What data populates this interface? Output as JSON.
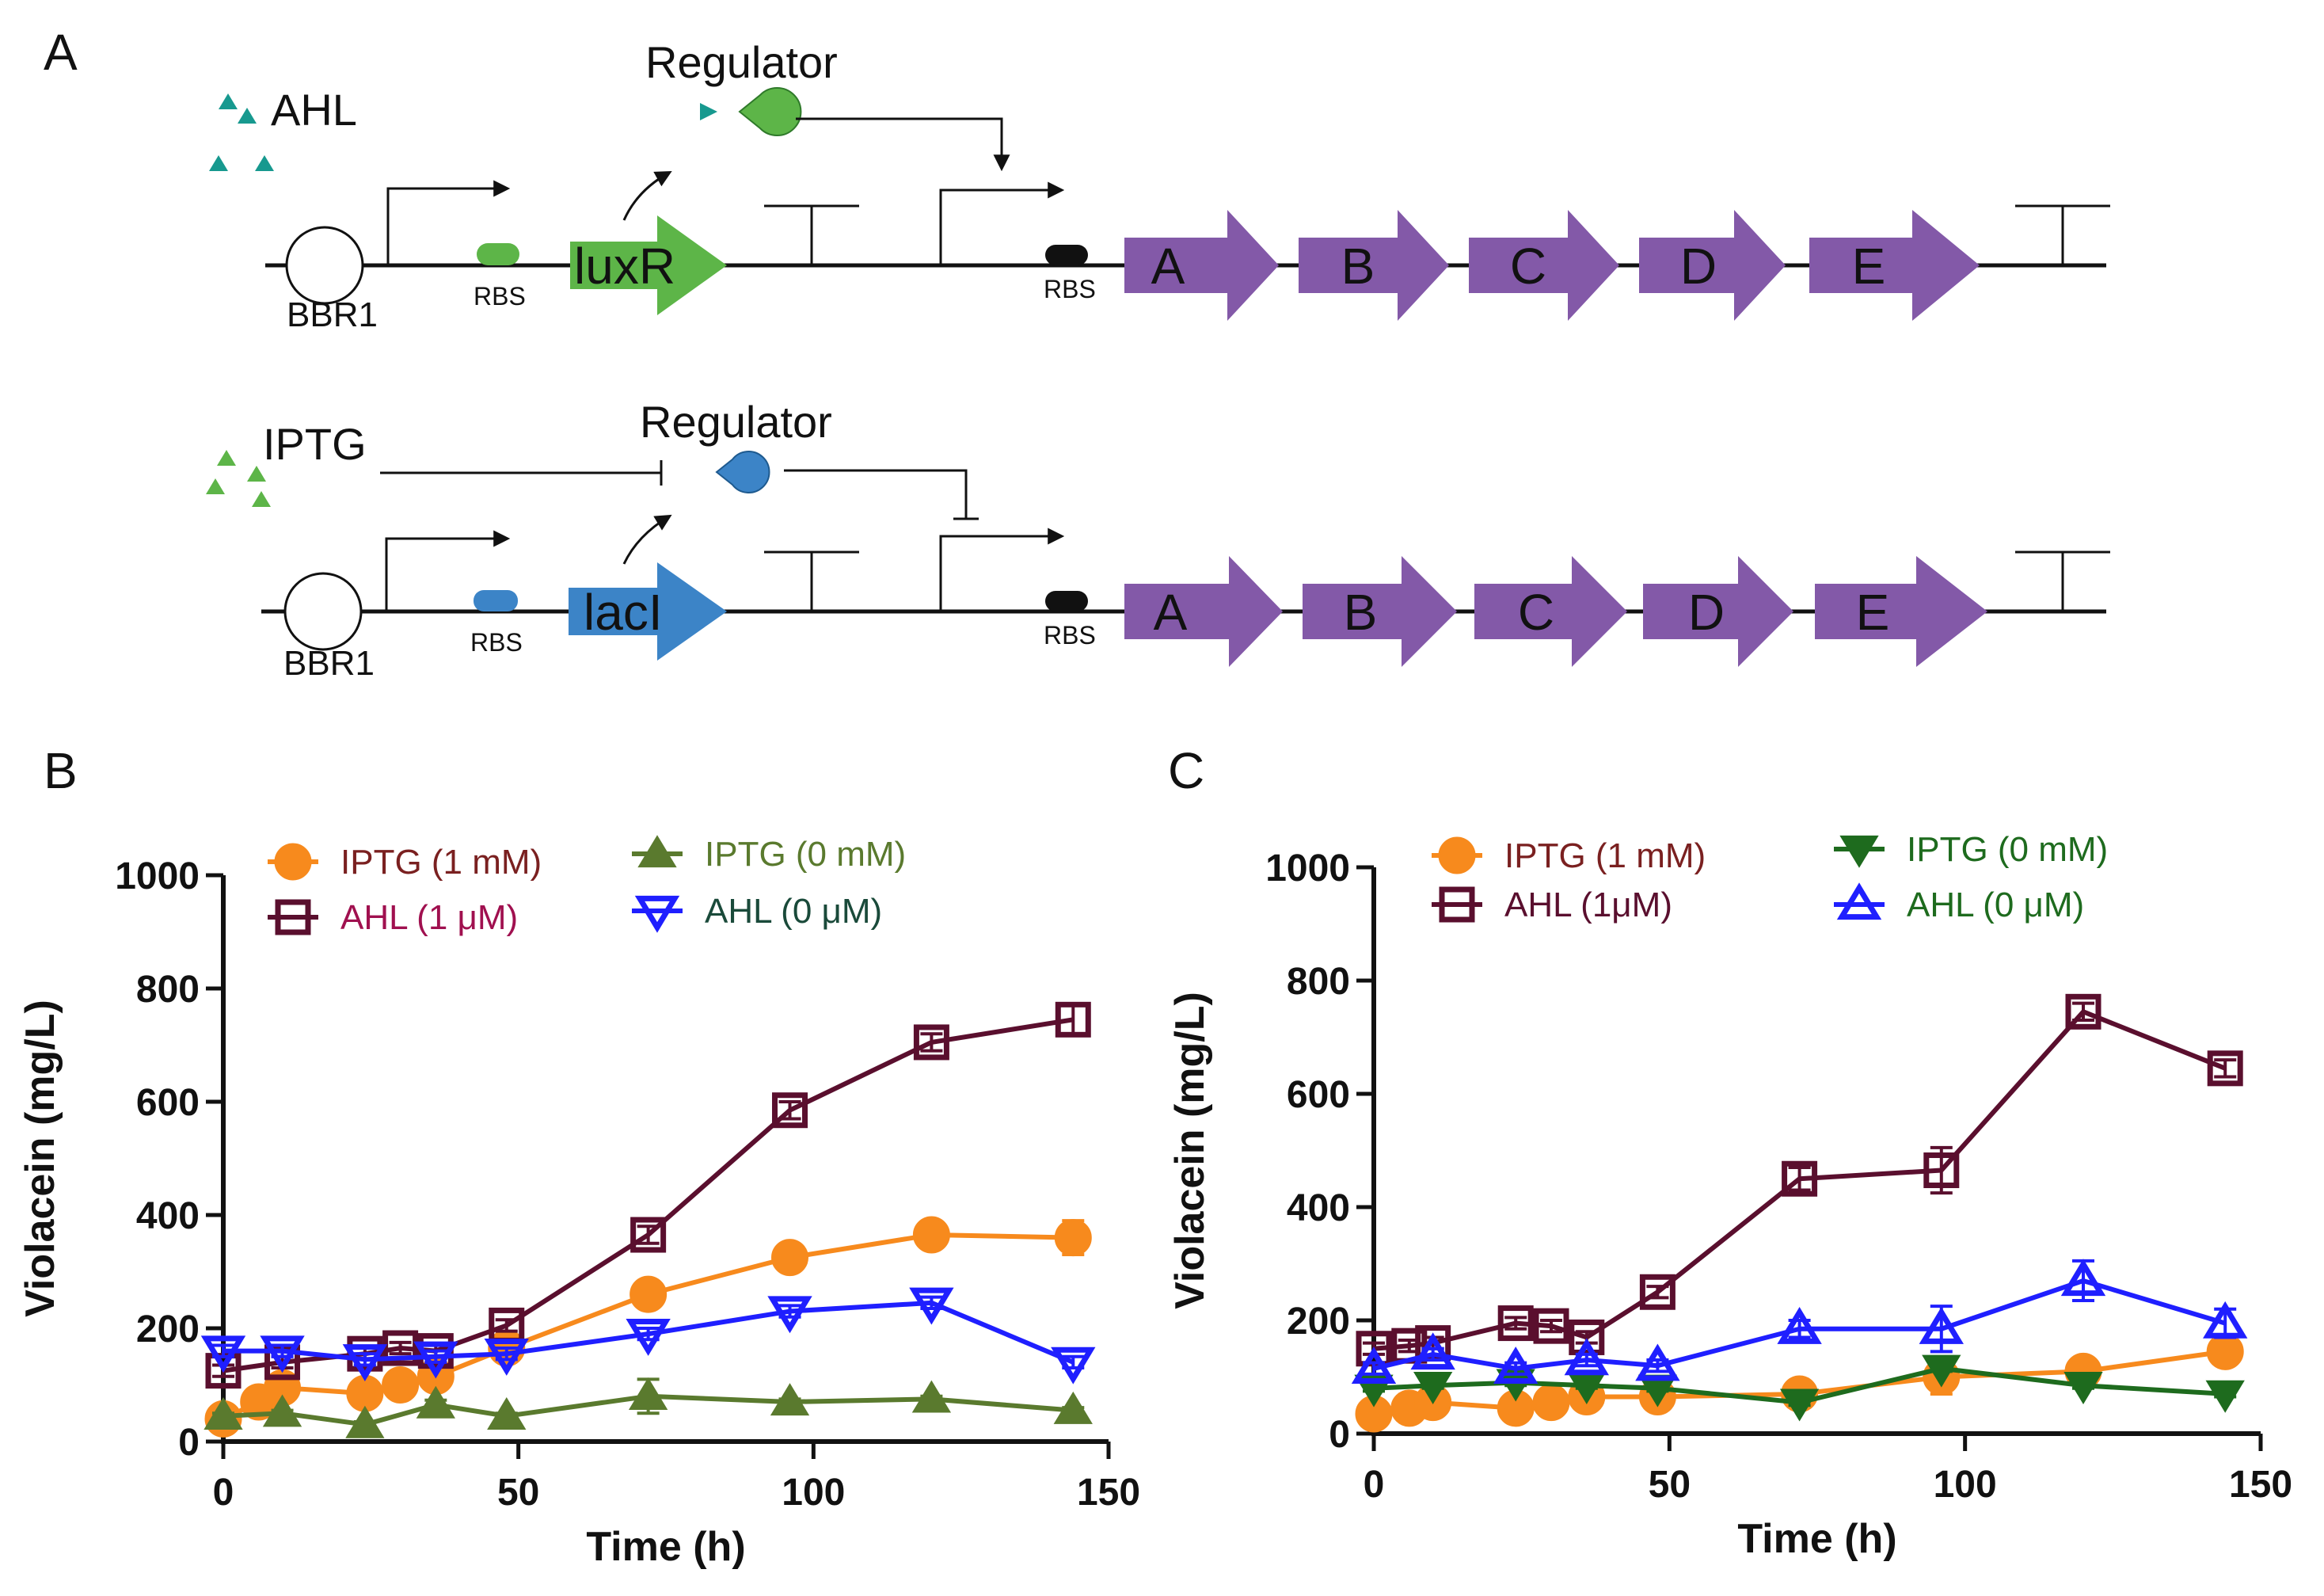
{
  "panels": {
    "a": "A",
    "b": "B",
    "c": "C"
  },
  "diagram": {
    "row1": {
      "inducer": "AHL",
      "regulator": "Regulator",
      "origin": "BBR1",
      "rbs1": "RBS",
      "regulator_gene": "luxR",
      "rbs2": "RBS",
      "genes": [
        "A",
        "B",
        "C",
        "D",
        "E"
      ]
    },
    "row2": {
      "inducer": "IPTG",
      "regulator": "Regulator",
      "origin": "BBR1",
      "rbs1": "RBS",
      "regulator_gene": "lacI",
      "rbs2": "RBS",
      "genes": [
        "A",
        "B",
        "C",
        "D",
        "E"
      ]
    }
  },
  "colors": {
    "ahl_triangle": "#17998f",
    "iptg_triangle": "#5db548",
    "luxr_green": "#5db548",
    "laci_blue": "#3c84c7",
    "operon_purple": "#8359a8",
    "dark_maroon": "#5a0f2e",
    "orange": "#f78a1d",
    "olive": "#5a7a2e",
    "dark_green": "#1e6b1e",
    "blue": "#1f1fff"
  },
  "chart_data": [
    {
      "panel": "B",
      "type": "line",
      "xlabel": "Time (h)",
      "ylabel": "Violacein (mg/L)",
      "xlim": [
        0,
        150
      ],
      "ylim": [
        0,
        1000
      ],
      "xticks": [
        0,
        50,
        100,
        150
      ],
      "yticks": [
        0,
        200,
        400,
        600,
        800,
        1000
      ],
      "grid": false,
      "series": [
        {
          "name": "IPTG (1 mM)",
          "label_color": "#7a2020",
          "color": "#f78a1d",
          "marker": "circle",
          "filled": true,
          "x": [
            0,
            6,
            10,
            24,
            30,
            36,
            48,
            72,
            96,
            120,
            144
          ],
          "y": [
            40,
            70,
            95,
            85,
            100,
            115,
            165,
            260,
            325,
            365,
            360
          ],
          "err": [
            8,
            10,
            8,
            8,
            8,
            10,
            10,
            12,
            10,
            12,
            30
          ]
        },
        {
          "name": "IPTG (0 mM)",
          "label_color": "#5a7a2e",
          "color": "#5a7a2e",
          "marker": "triangle-up",
          "filled": true,
          "x": [
            0,
            10,
            24,
            36,
            48,
            72,
            96,
            120,
            144
          ],
          "y": [
            45,
            50,
            30,
            65,
            45,
            80,
            70,
            75,
            55
          ],
          "err": [
            5,
            5,
            5,
            8,
            5,
            30,
            5,
            5,
            5
          ]
        },
        {
          "name": "AHL (1 μM)",
          "label_color": "#a0104f",
          "color": "#5a0f2e",
          "marker": "square",
          "filled": false,
          "x": [
            0,
            10,
            24,
            30,
            36,
            48,
            72,
            96,
            120,
            144
          ],
          "y": [
            125,
            140,
            155,
            165,
            160,
            205,
            365,
            585,
            705,
            745
          ],
          "err": [
            10,
            10,
            10,
            10,
            10,
            10,
            15,
            15,
            15,
            25
          ]
        },
        {
          "name": "AHL (0 μM)",
          "label_color": "#1a4a3a",
          "color": "#1f1fff",
          "marker": "triangle-down",
          "filled": false,
          "x": [
            0,
            10,
            24,
            36,
            48,
            72,
            96,
            120,
            144
          ],
          "y": [
            160,
            160,
            145,
            150,
            155,
            190,
            230,
            245,
            140
          ],
          "err": [
            10,
            10,
            10,
            10,
            10,
            10,
            10,
            10,
            10
          ]
        }
      ]
    },
    {
      "panel": "C",
      "type": "line",
      "xlabel": "Time (h)",
      "ylabel": "Violacein (mg/L)",
      "xlim": [
        0,
        150
      ],
      "ylim": [
        0,
        1000
      ],
      "xticks": [
        0,
        50,
        100,
        150
      ],
      "yticks": [
        0,
        200,
        400,
        600,
        800,
        1000
      ],
      "grid": false,
      "series": [
        {
          "name": "IPTG (1 mM)",
          "label_color": "#7a2020",
          "color": "#f78a1d",
          "marker": "circle",
          "filled": true,
          "x": [
            0,
            6,
            10,
            24,
            30,
            36,
            48,
            72,
            96,
            120,
            144
          ],
          "y": [
            35,
            45,
            55,
            45,
            55,
            65,
            65,
            70,
            100,
            110,
            145
          ],
          "err": [
            5,
            5,
            5,
            5,
            5,
            5,
            5,
            8,
            30,
            8,
            10
          ]
        },
        {
          "name": "IPTG (0 mM)",
          "label_color": "#1e6b1e",
          "color": "#1e6b1e",
          "marker": "triangle-down",
          "filled": true,
          "x": [
            0,
            10,
            24,
            36,
            48,
            72,
            96,
            120,
            144
          ],
          "y": [
            80,
            85,
            90,
            85,
            80,
            55,
            115,
            85,
            70
          ],
          "err": [
            5,
            5,
            5,
            5,
            5,
            5,
            5,
            5,
            5
          ]
        },
        {
          "name": "AHL (1μM)",
          "label_color": "#5a0f2e",
          "color": "#5a0f2e",
          "marker": "square",
          "filled": false,
          "x": [
            0,
            6,
            10,
            24,
            30,
            36,
            48,
            72,
            96,
            120,
            144
          ],
          "y": [
            150,
            155,
            160,
            195,
            190,
            170,
            250,
            450,
            465,
            745,
            645
          ],
          "err": [
            10,
            10,
            10,
            10,
            10,
            10,
            10,
            20,
            40,
            15,
            15
          ]
        },
        {
          "name": "AHL (0 μM)",
          "label_color": "#1e6b1e",
          "color": "#1f1fff",
          "marker": "triangle-up",
          "filled": false,
          "x": [
            0,
            10,
            24,
            36,
            48,
            72,
            96,
            120,
            144
          ],
          "y": [
            115,
            140,
            115,
            130,
            120,
            185,
            185,
            270,
            195
          ],
          "err": [
            10,
            10,
            10,
            10,
            10,
            15,
            40,
            35,
            25
          ]
        }
      ]
    }
  ]
}
